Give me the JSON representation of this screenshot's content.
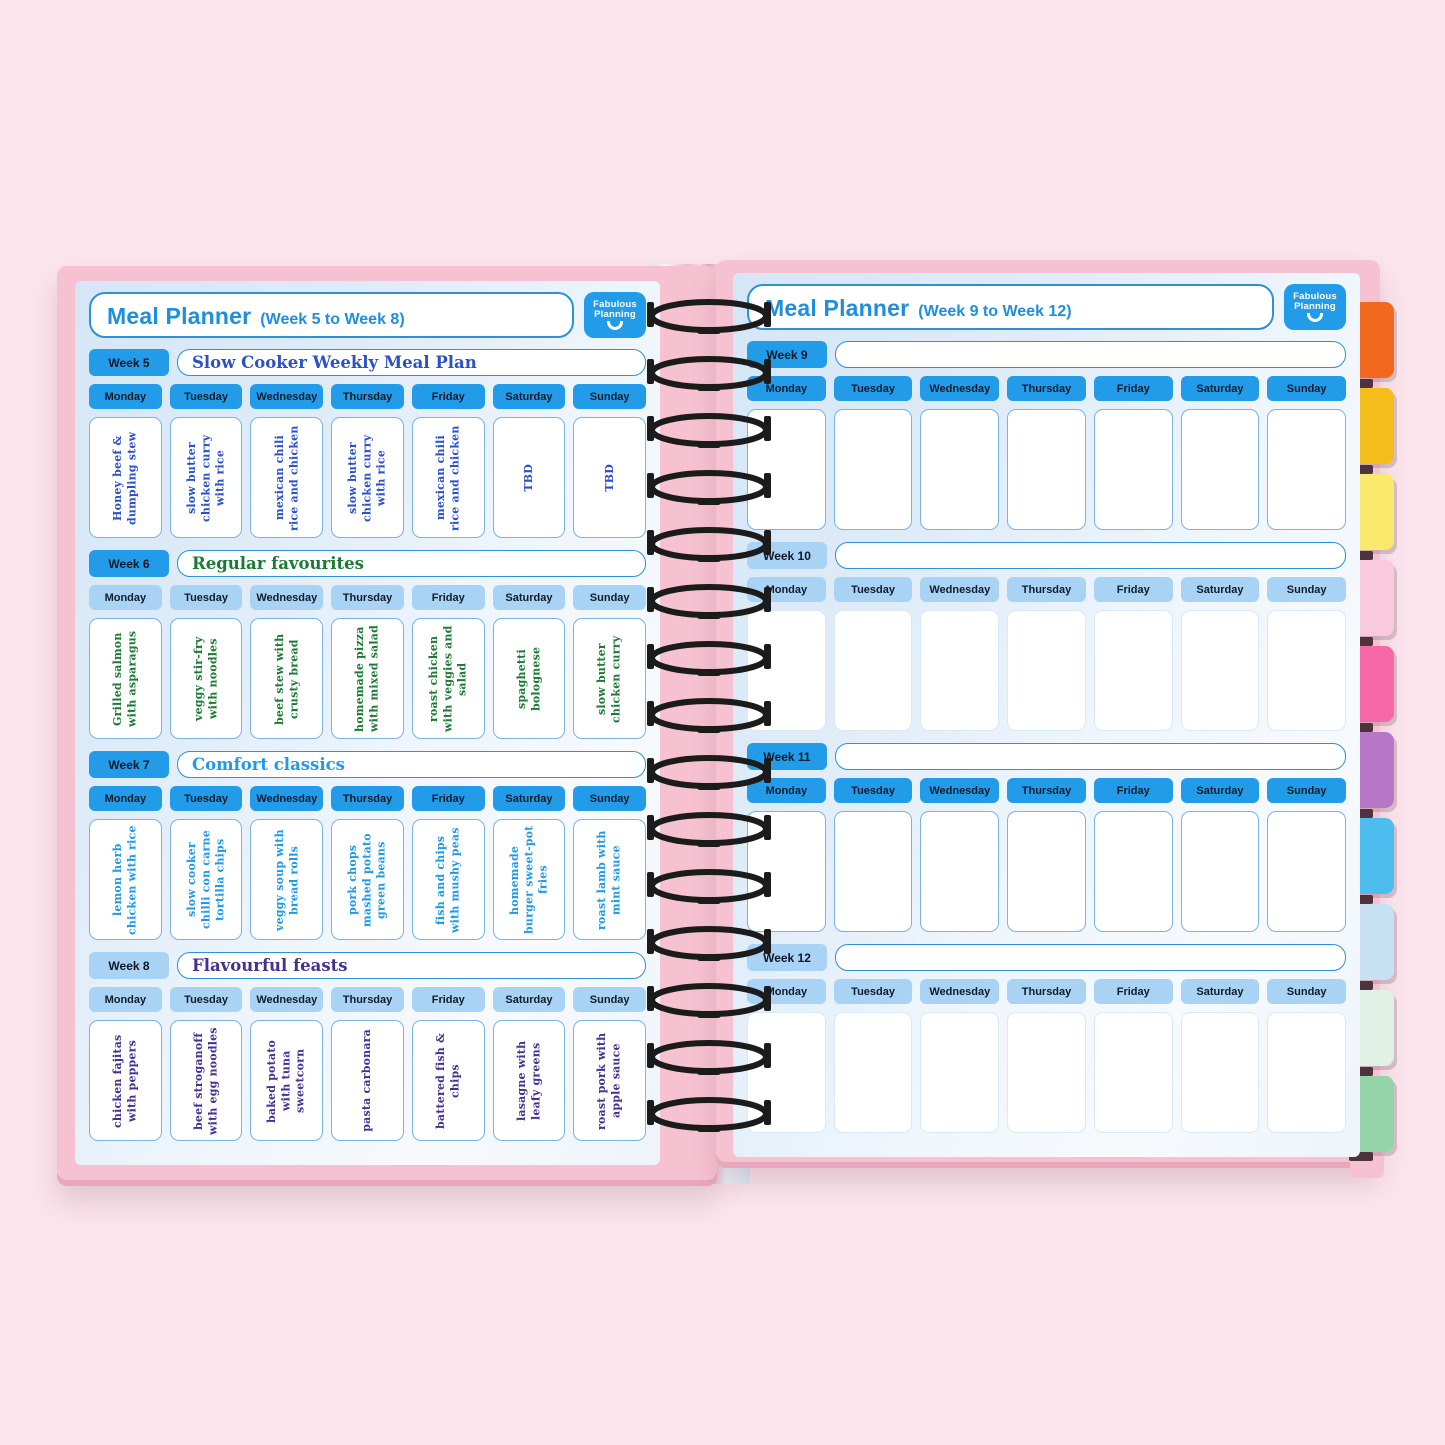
{
  "left_page": {
    "title": "Meal Planner",
    "range": "(Week 5 to Week 8)"
  },
  "right_page": {
    "title": "Meal Planner",
    "range": "(Week 9 to Week 12)"
  },
  "logo": {
    "line1": "Fabulous",
    "line2": "Planning"
  },
  "days": [
    "Monday",
    "Tuesday",
    "Wednesday",
    "Thursday",
    "Friday",
    "Saturday",
    "Sunday"
  ],
  "weeks": [
    {
      "label": "Week 5",
      "title": "Slow Cooker Weekly Meal Plan",
      "page": "left",
      "header_variant": "bright",
      "day_variant": "bright",
      "color": "#2b50c8",
      "meals": [
        "Honey beef & dumpling stew",
        "slow butter chicken curry with rice",
        "mexican chili rice and chicken",
        "slow butter chicken curry with rice",
        "mexican chili rice and chicken",
        "TBD",
        "TBD"
      ]
    },
    {
      "label": "Week 6",
      "title": "Regular favourites",
      "page": "left",
      "header_variant": "bright",
      "day_variant": "light",
      "color": "#1d7a35",
      "meals": [
        "Grilled salmon with asparagus",
        "veggy stir-fry with noodles",
        "beef stew with crusty bread",
        "homemade pizza with mixed salad",
        "roast chicken with veggies and salad",
        "spaghetti bolognese",
        "slow butter chicken curry"
      ]
    },
    {
      "label": "Week 7",
      "title": "Comfort classics",
      "page": "left",
      "header_variant": "bright",
      "day_variant": "bright",
      "color": "#1f9ae6",
      "meals": [
        "lemon herb chicken with rice",
        "slow cooker chilli con carne tortilla chips",
        "veggy soup with bread rolls",
        "pork chops mashed potato green beans",
        "fish and chips with mushy peas",
        "homemade burger sweet-pot fries",
        "roast lamb with mint sauce"
      ]
    },
    {
      "label": "Week 8",
      "title": "Flavourful feasts",
      "page": "left",
      "header_variant": "light",
      "day_variant": "light",
      "color": "#46318f",
      "meals": [
        "chicken fajitas with peppers",
        "beef stroganoff with egg noodles",
        "baked potato with tuna sweetcorn",
        "pasta carbonara",
        "battered fish & chips",
        "lasagne with leafy greens",
        "roast pork with apple sauce"
      ]
    },
    {
      "label": "Week 9",
      "title": "",
      "page": "right",
      "header_variant": "bright",
      "day_variant": "bright",
      "color": "#2b50c8",
      "meals": [
        "",
        "",
        "",
        "",
        "",
        "",
        ""
      ]
    },
    {
      "label": "Week 10",
      "title": "",
      "page": "right",
      "header_variant": "light",
      "day_variant": "light",
      "color": "#2b50c8",
      "meals": [
        "",
        "",
        "",
        "",
        "",
        "",
        ""
      ]
    },
    {
      "label": "Week 11",
      "title": "",
      "page": "right",
      "header_variant": "bright",
      "day_variant": "bright",
      "color": "#2b50c8",
      "meals": [
        "",
        "",
        "",
        "",
        "",
        "",
        ""
      ]
    },
    {
      "label": "Week 12",
      "title": "",
      "page": "right",
      "header_variant": "light",
      "day_variant": "light",
      "color": "#2b50c8",
      "meals": [
        "",
        "",
        "",
        "",
        "",
        "",
        ""
      ]
    }
  ],
  "tabs": [
    {
      "name": "tab-orange",
      "color": "#f3681f"
    },
    {
      "name": "tab-gold",
      "color": "#f4bd1c"
    },
    {
      "name": "tab-yellow",
      "color": "#f9e96d"
    },
    {
      "name": "tab-pale-pink",
      "color": "#f9c9dd"
    },
    {
      "name": "tab-hot-pink",
      "color": "#f668a6"
    },
    {
      "name": "tab-orchid",
      "color": "#b877c6"
    },
    {
      "name": "tab-sky-blue",
      "color": "#4cbdee"
    },
    {
      "name": "tab-pale-blue",
      "color": "#c6e1f4"
    },
    {
      "name": "tab-mint",
      "color": "#e0f2e5"
    },
    {
      "name": "tab-green",
      "color": "#93d5a9"
    }
  ],
  "colors": {
    "background": "#fbe4ec",
    "cover_pink": "#f6c2d2",
    "cover_edge": "#e8a7bd",
    "bright_blue": "#229ce9",
    "light_blue": "#a9d3f4",
    "box_border": "#2f8fd9",
    "cell_border": "#79b4e4",
    "faint_cell_border": "#d9eaf7",
    "header_text": "#1f8ede",
    "chip_text": "#101b2b"
  }
}
